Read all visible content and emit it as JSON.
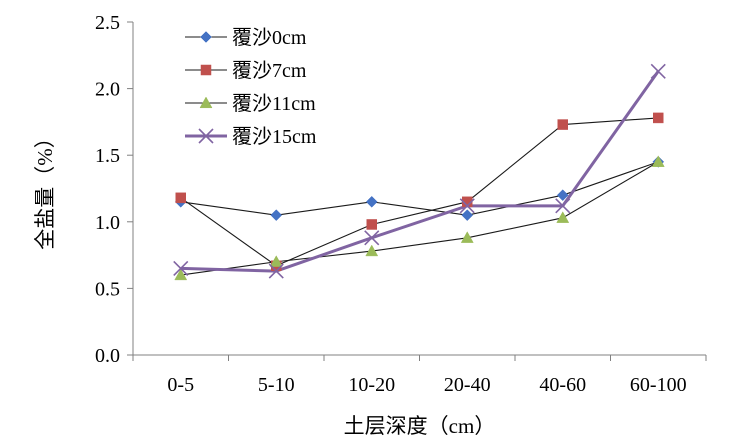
{
  "chart_data": {
    "type": "line",
    "categories": [
      "0-5",
      "5-10",
      "10-20",
      "20-40",
      "40-60",
      "60-100"
    ],
    "xlabel": "土层深度（cm）",
    "ylabel": "全盐量（%）",
    "ylim": [
      0,
      2.5
    ],
    "yticks": [
      "0.0",
      "0.5",
      "1.0",
      "1.5",
      "2.0",
      "2.5"
    ],
    "grid": false,
    "legend_position": "top-left",
    "series": [
      {
        "name": "覆沙0cm",
        "values": [
          1.15,
          1.05,
          1.15,
          1.05,
          1.2,
          1.45
        ],
        "marker": "diamond",
        "color": "#4472C4"
      },
      {
        "name": "覆沙7cm",
        "values": [
          1.18,
          0.67,
          0.98,
          1.15,
          1.73,
          1.78
        ],
        "marker": "square",
        "color": "#C0504D"
      },
      {
        "name": "覆沙11cm",
        "values": [
          0.6,
          0.7,
          0.78,
          0.88,
          1.03,
          1.45
        ],
        "marker": "triangle",
        "color": "#9BBB59"
      },
      {
        "name": "覆沙15cm",
        "values": [
          0.65,
          0.63,
          0.88,
          1.12,
          1.12,
          2.13
        ],
        "marker": "x",
        "color": "#8064A2"
      }
    ],
    "connector_line_color": "#1a1a1a",
    "axis_color": "#808080"
  }
}
